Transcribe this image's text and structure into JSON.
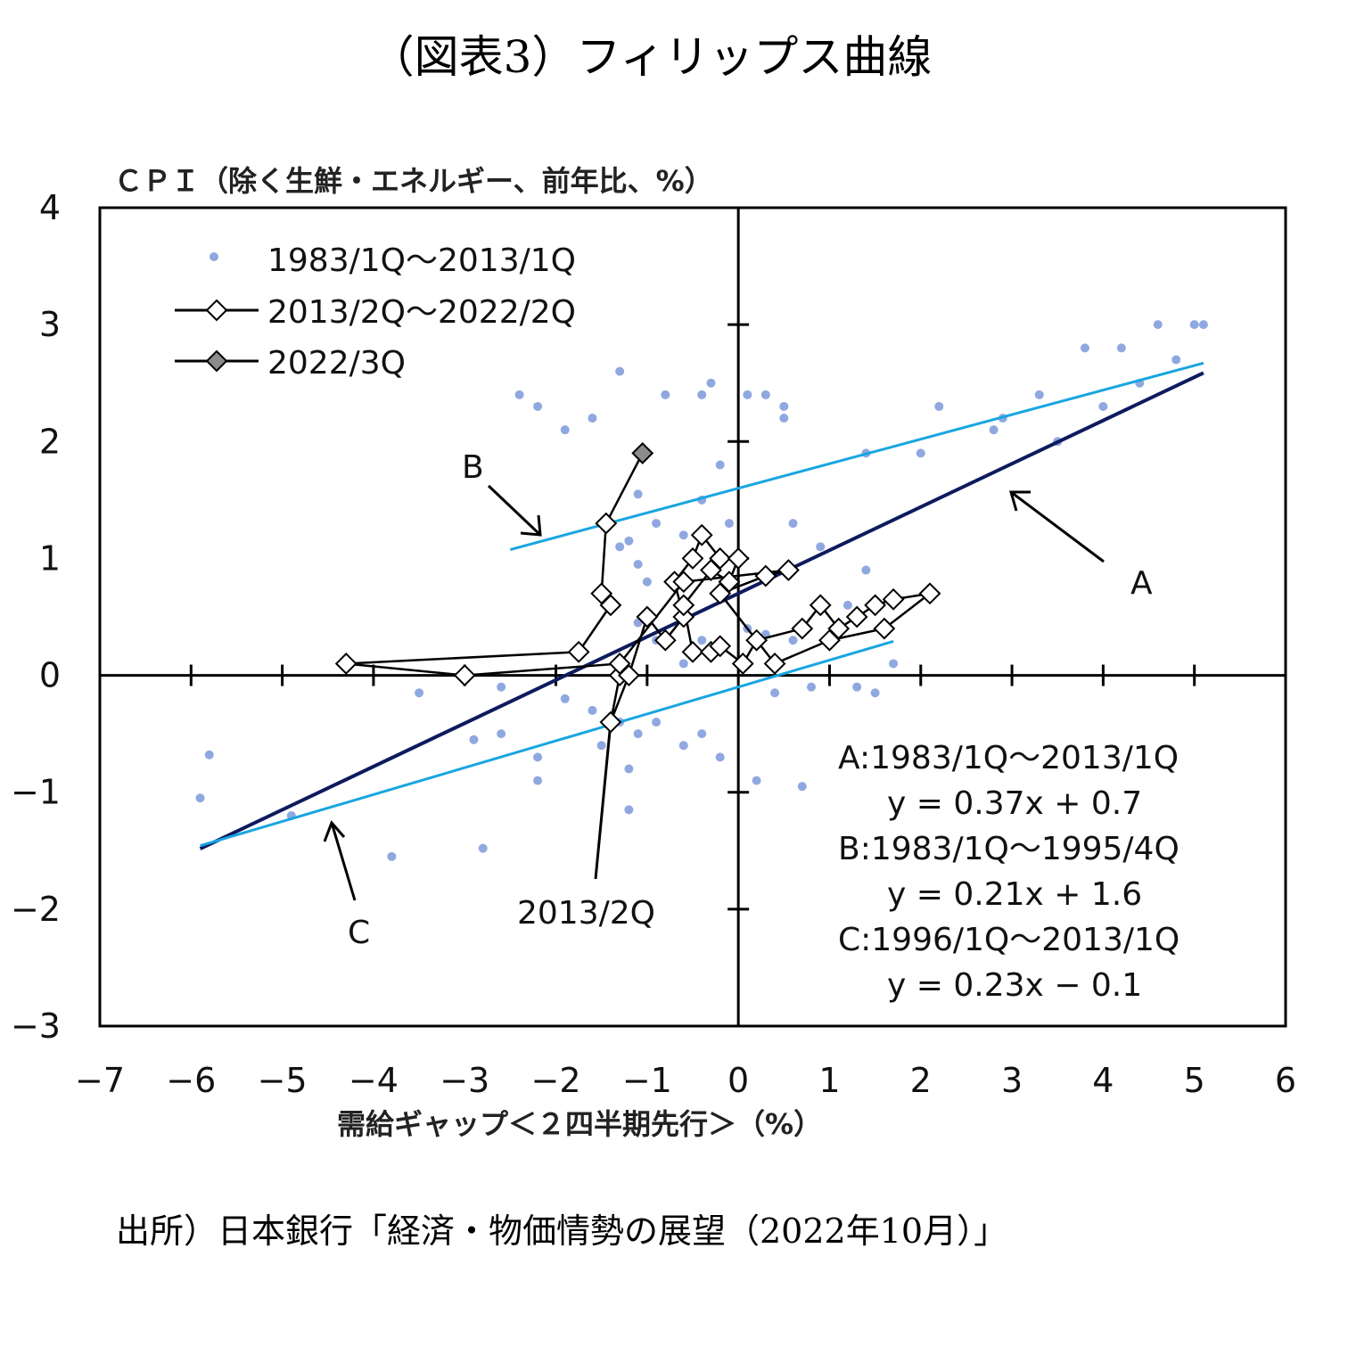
{
  "figure_title": "（図表3）フィリップス曲線",
  "source": "出所）日本銀行「経済・物価情勢の展望（2022年10月）」",
  "chart_data": {
    "type": "scatter",
    "ylabel": "ＣＰＩ（除く生鮮・エネルギー、前年比、%）",
    "xlabel": "需給ギャップ＜２四半期先行＞（%）",
    "xlim": [
      -7,
      6
    ],
    "ylim": [
      -3,
      4
    ],
    "x_ticks": [
      "−7",
      "−6",
      "−5",
      "−4",
      "−3",
      "−2",
      "−1",
      "0",
      "1",
      "2",
      "3",
      "4",
      "5",
      "6"
    ],
    "y_ticks": [
      "4",
      "3",
      "2",
      "1",
      "0",
      "−1",
      "−2",
      "−3"
    ],
    "colors": {
      "scatter": "#8fa8e0",
      "line_A": "#0d1b5e",
      "line_BC": "#18a6e0",
      "marker_fill_latest": "#8c8c8c"
    },
    "legend": {
      "scatter": "1983/1Q〜2013/1Q",
      "path": "2013/2Q〜2022/2Q",
      "latest": "2022/3Q"
    },
    "scatter_points": [
      [
        -5.9,
        -1.05
      ],
      [
        -5.8,
        -0.68
      ],
      [
        -4.9,
        -1.2
      ],
      [
        -3.8,
        -1.55
      ],
      [
        -2.8,
        -1.48
      ],
      [
        -2.2,
        -0.9
      ],
      [
        -2.2,
        -0.7
      ],
      [
        -2.6,
        -0.5
      ],
      [
        -2.9,
        -0.55
      ],
      [
        -2.4,
        2.4
      ],
      [
        -2.2,
        2.3
      ],
      [
        -1.9,
        2.1
      ],
      [
        -1.6,
        2.2
      ],
      [
        -1.3,
        2.6
      ],
      [
        -0.8,
        2.4
      ],
      [
        -0.4,
        2.4
      ],
      [
        -0.3,
        2.5
      ],
      [
        0.1,
        2.4
      ],
      [
        0.3,
        2.4
      ],
      [
        0.5,
        2.3
      ],
      [
        0.5,
        2.2
      ],
      [
        -1.1,
        1.55
      ],
      [
        -0.9,
        1.3
      ],
      [
        -1.2,
        1.15
      ],
      [
        -1.3,
        1.1
      ],
      [
        -1.1,
        0.95
      ],
      [
        -1.0,
        0.8
      ],
      [
        -0.6,
        1.2
      ],
      [
        -0.4,
        1.5
      ],
      [
        -0.2,
        1.8
      ],
      [
        -0.1,
        1.3
      ],
      [
        0.6,
        1.3
      ],
      [
        0.9,
        1.1
      ],
      [
        -1.1,
        0.45
      ],
      [
        -0.9,
        0.3
      ],
      [
        -0.6,
        0.1
      ],
      [
        -0.4,
        0.3
      ],
      [
        0.1,
        0.4
      ],
      [
        0.3,
        0.35
      ],
      [
        0.6,
        0.3
      ],
      [
        1.2,
        0.6
      ],
      [
        1.4,
        0.9
      ],
      [
        1.7,
        0.1
      ],
      [
        -1.3,
        -0.4
      ],
      [
        -1.1,
        -0.5
      ],
      [
        -0.9,
        -0.4
      ],
      [
        -0.6,
        -0.6
      ],
      [
        -0.4,
        -0.5
      ],
      [
        -0.2,
        -0.7
      ],
      [
        0.2,
        -0.9
      ],
      [
        0.7,
        -0.95
      ],
      [
        -1.2,
        -1.15
      ],
      [
        -1.2,
        -0.8
      ],
      [
        -1.5,
        -0.6
      ],
      [
        -3.5,
        -0.15
      ],
      [
        -2.6,
        -0.1
      ],
      [
        -1.9,
        -0.2
      ],
      [
        -1.6,
        -0.3
      ],
      [
        0.4,
        -0.15
      ],
      [
        0.8,
        -0.1
      ],
      [
        1.3,
        -0.1
      ],
      [
        1.5,
        -0.15
      ],
      [
        1.4,
        1.9
      ],
      [
        2.0,
        1.9
      ],
      [
        2.2,
        2.3
      ],
      [
        2.8,
        2.1
      ],
      [
        2.9,
        2.2
      ],
      [
        3.3,
        2.4
      ],
      [
        3.5,
        2.0
      ],
      [
        3.8,
        2.8
      ],
      [
        4.0,
        2.3
      ],
      [
        4.2,
        2.8
      ],
      [
        4.4,
        2.5
      ],
      [
        4.6,
        3.0
      ],
      [
        4.8,
        2.7
      ],
      [
        5.0,
        3.0
      ],
      [
        5.1,
        3.0
      ]
    ],
    "path_2013_2022": [
      [
        -1.3,
        0.0
      ],
      [
        -1.4,
        -0.4
      ],
      [
        -1.2,
        0.0
      ],
      [
        -1.0,
        0.5
      ],
      [
        -0.8,
        0.3
      ],
      [
        -0.6,
        0.5
      ],
      [
        -0.7,
        0.8
      ],
      [
        -0.5,
        1.0
      ],
      [
        -0.4,
        1.2
      ],
      [
        -0.2,
        1.0
      ],
      [
        0.0,
        1.0
      ],
      [
        -0.1,
        0.8
      ],
      [
        -0.3,
        0.9
      ],
      [
        -0.6,
        0.6
      ],
      [
        -0.5,
        0.2
      ],
      [
        -0.3,
        0.2
      ],
      [
        -0.2,
        0.25
      ],
      [
        0.05,
        0.1
      ],
      [
        0.2,
        0.3
      ],
      [
        0.7,
        0.4
      ],
      [
        0.9,
        0.6
      ],
      [
        1.1,
        0.4
      ],
      [
        1.3,
        0.5
      ],
      [
        1.5,
        0.6
      ],
      [
        1.7,
        0.65
      ],
      [
        2.1,
        0.7
      ],
      [
        1.6,
        0.4
      ],
      [
        1.0,
        0.3
      ],
      [
        0.4,
        0.1
      ],
      [
        -0.2,
        0.7
      ],
      [
        0.3,
        0.85
      ],
      [
        0.55,
        0.9
      ],
      [
        -0.6,
        0.8
      ],
      [
        -1.3,
        0.1
      ],
      [
        -3.0,
        0.0
      ],
      [
        -4.3,
        0.1
      ],
      [
        -1.75,
        0.2
      ],
      [
        -1.4,
        0.6
      ],
      [
        -1.5,
        0.7
      ],
      [
        -1.45,
        1.3
      ]
    ],
    "point_2022_3Q": [
      -1.05,
      1.9
    ],
    "regression_lines": [
      {
        "name": "A",
        "slope": 0.37,
        "intercept": 0.7,
        "x_range": [
          -5.9,
          5.1
        ]
      },
      {
        "name": "B",
        "slope": 0.21,
        "intercept": 1.6,
        "x_range": [
          -2.5,
          5.1
        ]
      },
      {
        "name": "C",
        "slope": 0.23,
        "intercept": -0.1,
        "x_range": [
          -5.9,
          1.7
        ]
      }
    ],
    "annotations": {
      "A": "A",
      "B": "B",
      "C": "C",
      "start": "2013/2Q"
    },
    "equations": [
      "A:1983/1Q〜2013/1Q",
      "y = 0.37x + 0.7",
      "B:1983/1Q〜1995/4Q",
      "y = 0.21x + 1.6",
      "C:1996/1Q〜2013/1Q",
      "y = 0.23x − 0.1"
    ]
  }
}
